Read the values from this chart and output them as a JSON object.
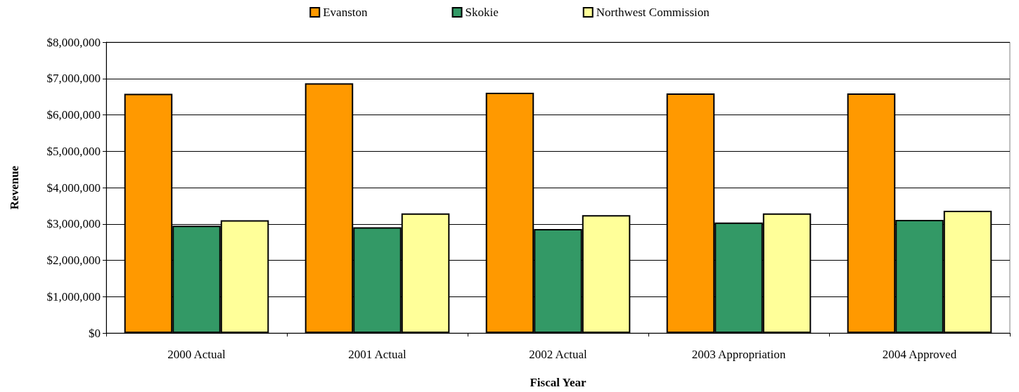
{
  "chart_data": {
    "type": "bar",
    "xlabel": "Fiscal Year",
    "ylabel": "Revenue",
    "categories": [
      "2000 Actual",
      "2001 Actual",
      "2002 Actual",
      "2003 Appropriation",
      "2004 Approved"
    ],
    "series": [
      {
        "name": "Evanston",
        "color": "#ff9900",
        "values": [
          6580000,
          6870000,
          6610000,
          6590000,
          6590000
        ]
      },
      {
        "name": "Skokie",
        "color": "#339966",
        "values": [
          2950000,
          2910000,
          2860000,
          3040000,
          3110000
        ]
      },
      {
        "name": "Northwest Commission",
        "color": "#ffff99",
        "values": [
          3100000,
          3290000,
          3240000,
          3290000,
          3360000
        ]
      }
    ],
    "ylim": [
      0,
      8000000
    ],
    "yticks": [
      {
        "value": 0,
        "label": "$0"
      },
      {
        "value": 1000000,
        "label": "$1,000,000"
      },
      {
        "value": 2000000,
        "label": "$2,000,000"
      },
      {
        "value": 3000000,
        "label": "$3,000,000"
      },
      {
        "value": 4000000,
        "label": "$4,000,000"
      },
      {
        "value": 5000000,
        "label": "$5,000,000"
      },
      {
        "value": 6000000,
        "label": "$6,000,000"
      },
      {
        "value": 7000000,
        "label": "$7,000,000"
      },
      {
        "value": 8000000,
        "label": "$8,000,000"
      }
    ],
    "grid": "y",
    "legend": "top"
  }
}
